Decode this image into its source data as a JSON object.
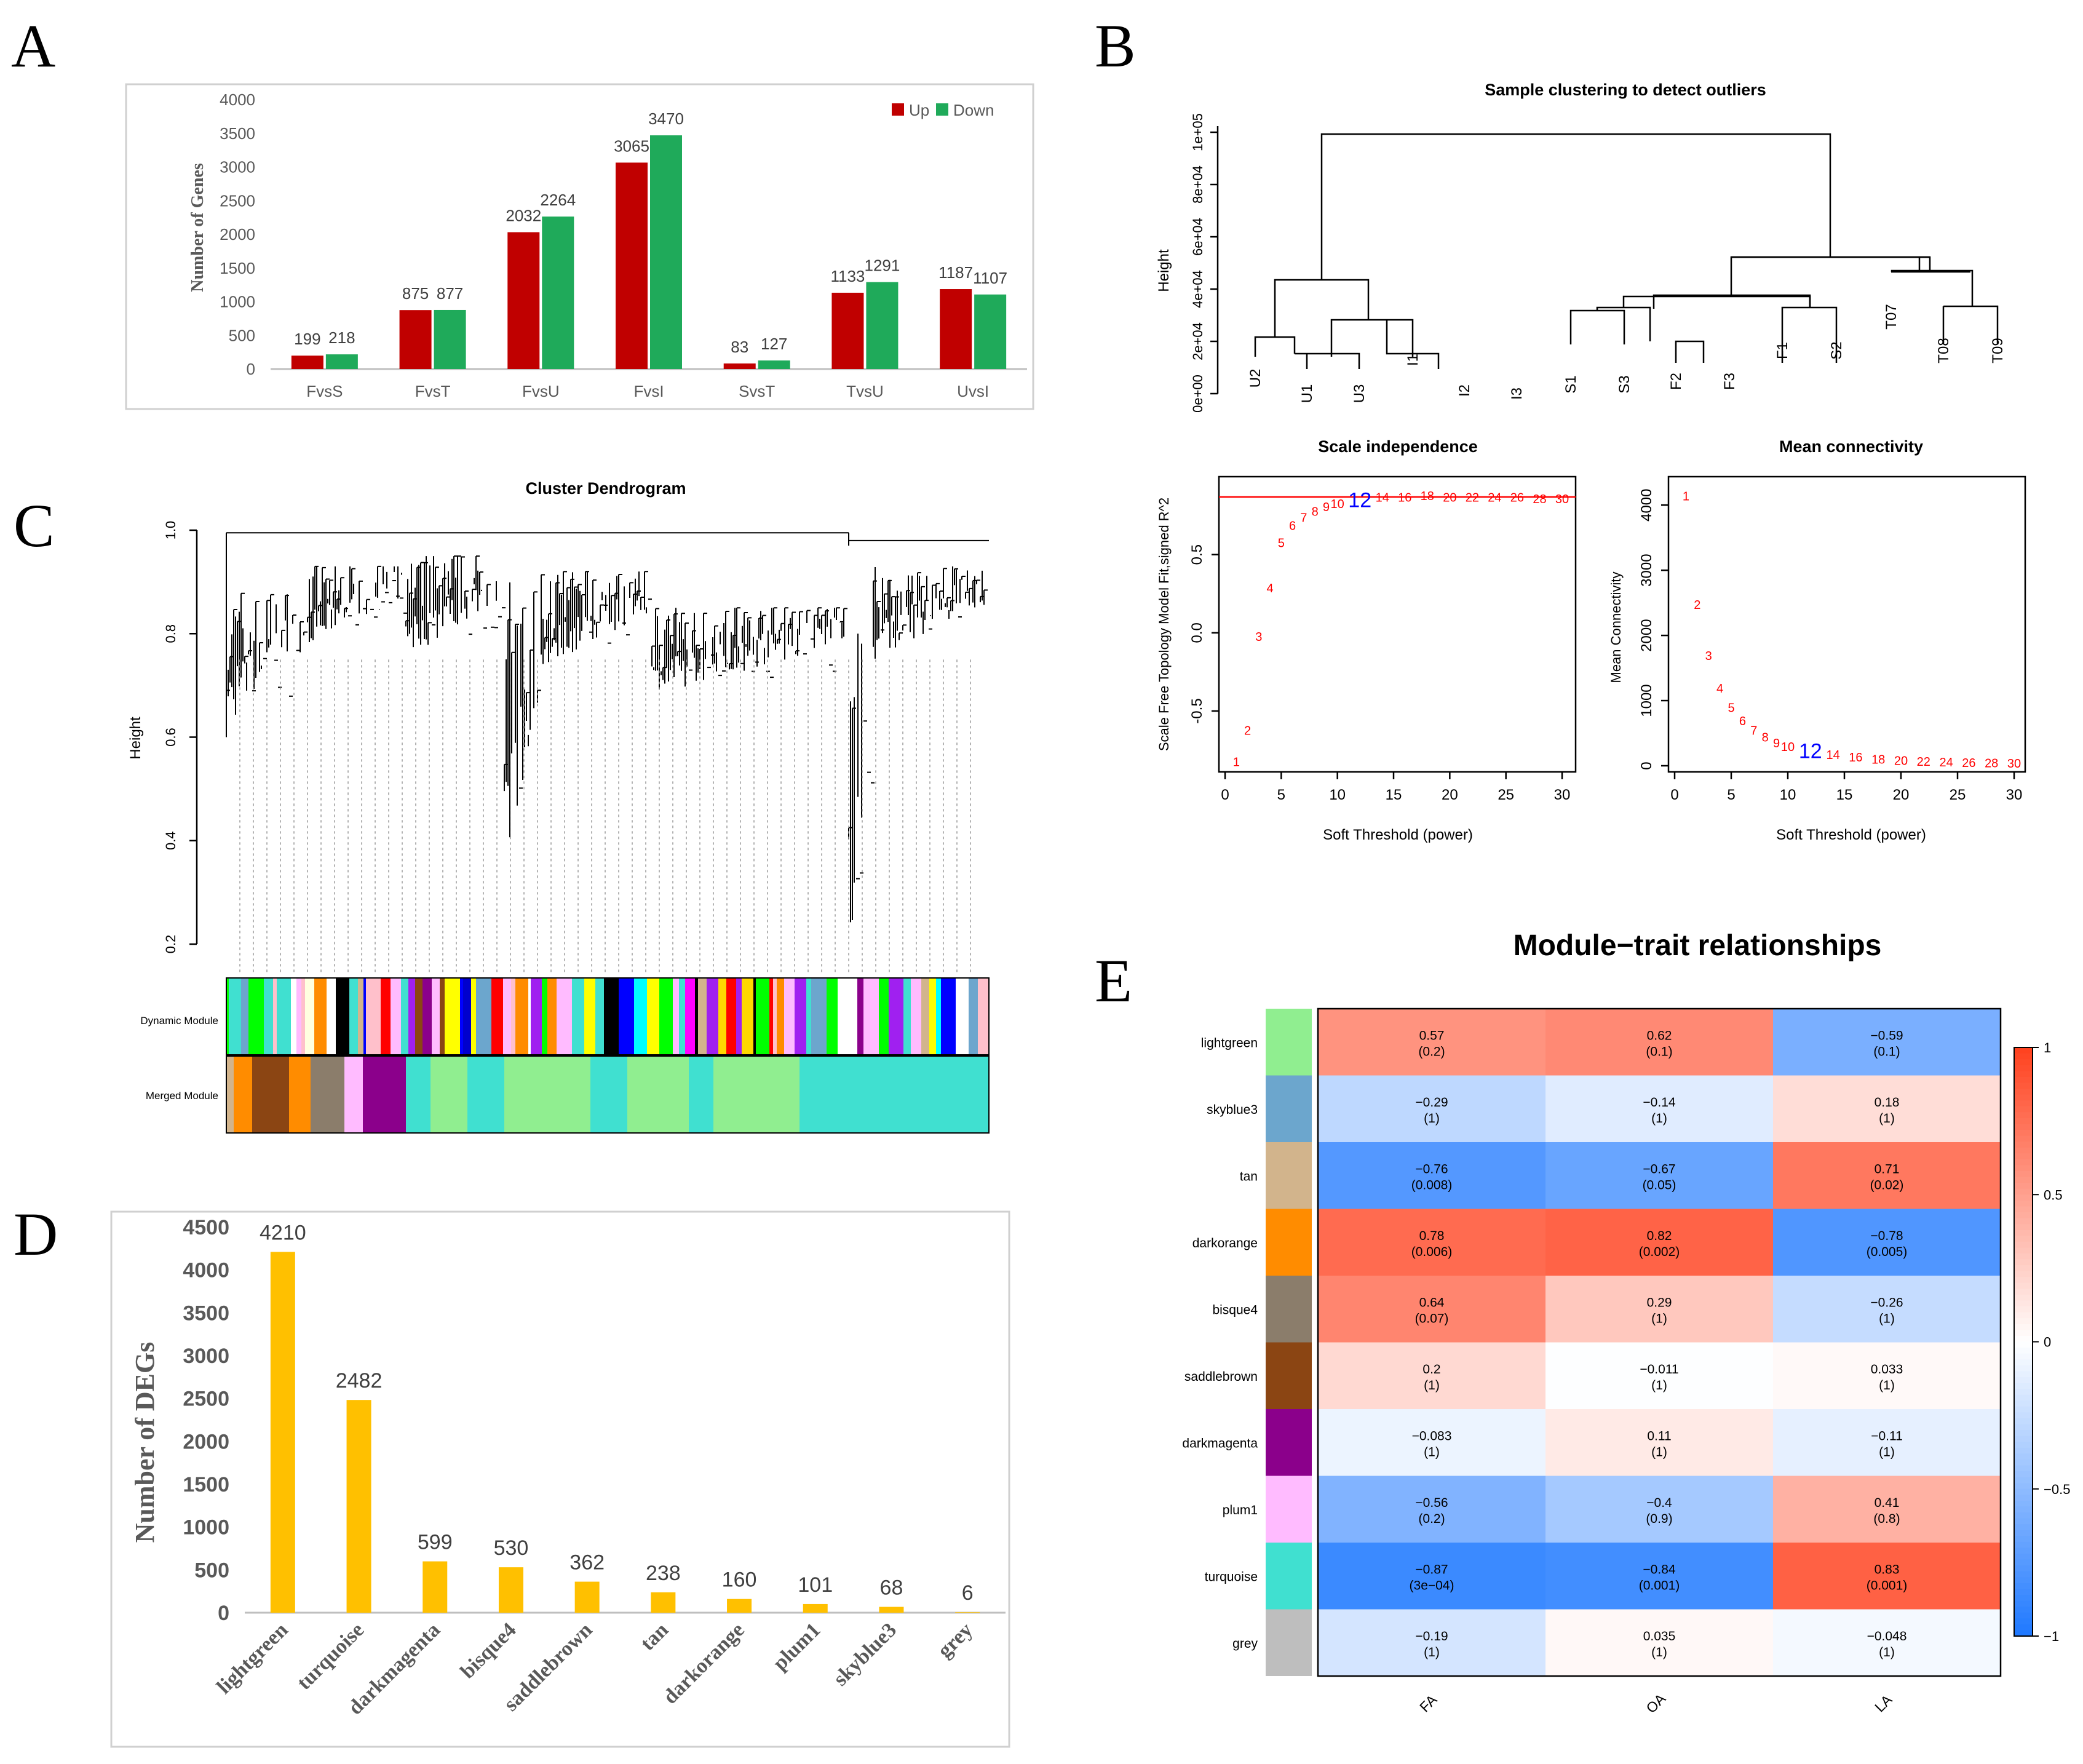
{
  "panels": {
    "A": "A",
    "B": "B",
    "C": "C",
    "D": "D",
    "E": "E"
  },
  "colors": {
    "up": "#c00000",
    "down": "#1faa5a",
    "yellow": "#ffc000",
    "red": "#ff0000",
    "blue": "#0000ff"
  },
  "chart_data": [
    {
      "id": "A",
      "type": "bar",
      "ylabel": "Number of Genes",
      "categories": [
        "FvsS",
        "FvsT",
        "FvsU",
        "FvsI",
        "SvsT",
        "TvsU",
        "UvsI"
      ],
      "ylim": [
        0,
        4000
      ],
      "yticks": [
        "0",
        "500",
        "1000",
        "1500",
        "2000",
        "2500",
        "3000",
        "3500",
        "4000"
      ],
      "legend": [
        "Up",
        "Down"
      ],
      "series": [
        {
          "name": "Up",
          "values": [
            199,
            875,
            2032,
            3065,
            83,
            1133,
            1187
          ]
        },
        {
          "name": "Down",
          "values": [
            218,
            877,
            2264,
            3470,
            127,
            1291,
            1107
          ]
        }
      ]
    },
    {
      "id": "B",
      "type": "dendrogram",
      "title": "Sample clustering to detect outliers",
      "ylabel": "Height",
      "yticks": [
        "0e+00",
        "2e+04",
        "4e+04",
        "6e+04",
        "8e+04",
        "1e+05"
      ],
      "leaves": [
        "U2",
        "U1",
        "U3",
        "I1",
        "I2",
        "I3",
        "S1",
        "S3",
        "F2",
        "F3",
        "F1",
        "S2",
        "T07",
        "T08",
        "T09"
      ]
    },
    {
      "id": "B2",
      "type": "scatter",
      "title": "Scale independence",
      "xlabel": "Soft Threshold (power)",
      "ylabel": "Scale Free Topology Model Fit,signed R^2",
      "xticks": [
        "0",
        "5",
        "10",
        "15",
        "20",
        "25",
        "30"
      ],
      "yticks": [
        "-0.5",
        "0.0",
        "0.5"
      ],
      "highlight": "12",
      "points": [
        {
          "x": 1,
          "y": -0.82,
          "label": "1"
        },
        {
          "x": 2,
          "y": -0.62,
          "label": "2"
        },
        {
          "x": 3,
          "y": -0.02,
          "label": "3"
        },
        {
          "x": 4,
          "y": 0.29,
          "label": "4"
        },
        {
          "x": 5,
          "y": 0.58,
          "label": "5"
        },
        {
          "x": 6,
          "y": 0.69,
          "label": "6"
        },
        {
          "x": 7,
          "y": 0.74,
          "label": "7"
        },
        {
          "x": 8,
          "y": 0.78,
          "label": "8"
        },
        {
          "x": 9,
          "y": 0.81,
          "label": "9"
        },
        {
          "x": 10,
          "y": 0.83,
          "label": "10"
        },
        {
          "x": 12,
          "y": 0.85,
          "label": "12"
        },
        {
          "x": 14,
          "y": 0.87,
          "label": "14"
        },
        {
          "x": 16,
          "y": 0.87,
          "label": "16"
        },
        {
          "x": 18,
          "y": 0.88,
          "label": "18"
        },
        {
          "x": 20,
          "y": 0.87,
          "label": "20"
        },
        {
          "x": 22,
          "y": 0.87,
          "label": "22"
        },
        {
          "x": 24,
          "y": 0.87,
          "label": "24"
        },
        {
          "x": 26,
          "y": 0.87,
          "label": "26"
        },
        {
          "x": 28,
          "y": 0.86,
          "label": "28"
        },
        {
          "x": 30,
          "y": 0.86,
          "label": "30"
        }
      ]
    },
    {
      "id": "B3",
      "type": "scatter",
      "title": "Mean connectivity",
      "xlabel": "Soft Threshold (power)",
      "ylabel": "Mean Connectivity",
      "xticks": [
        "0",
        "5",
        "10",
        "15",
        "20",
        "25",
        "30"
      ],
      "yticks": [
        "0",
        "1000",
        "2000",
        "3000",
        "4000"
      ],
      "highlight": "12",
      "points": [
        {
          "x": 1,
          "y": 4150,
          "label": "1"
        },
        {
          "x": 2,
          "y": 2480,
          "label": "2"
        },
        {
          "x": 3,
          "y": 1700,
          "label": "3"
        },
        {
          "x": 4,
          "y": 1200,
          "label": "4"
        },
        {
          "x": 5,
          "y": 900,
          "label": "5"
        },
        {
          "x": 6,
          "y": 700,
          "label": "6"
        },
        {
          "x": 7,
          "y": 550,
          "label": "7"
        },
        {
          "x": 8,
          "y": 450,
          "label": "8"
        },
        {
          "x": 9,
          "y": 360,
          "label": "9"
        },
        {
          "x": 10,
          "y": 300,
          "label": "10"
        },
        {
          "x": 12,
          "y": 230,
          "label": "12"
        },
        {
          "x": 14,
          "y": 180,
          "label": "14"
        },
        {
          "x": 16,
          "y": 140,
          "label": "16"
        },
        {
          "x": 18,
          "y": 110,
          "label": "18"
        },
        {
          "x": 20,
          "y": 90,
          "label": "20"
        },
        {
          "x": 22,
          "y": 75,
          "label": "22"
        },
        {
          "x": 24,
          "y": 65,
          "label": "24"
        },
        {
          "x": 26,
          "y": 55,
          "label": "26"
        },
        {
          "x": 28,
          "y": 50,
          "label": "28"
        },
        {
          "x": 30,
          "y": 45,
          "label": "30"
        }
      ]
    },
    {
      "id": "C",
      "type": "dendrogram",
      "title": "Cluster Dendrogram",
      "ylabel": "Height",
      "yticks": [
        "0.2",
        "0.4",
        "0.6",
        "0.8",
        "1.0"
      ],
      "rows": [
        "Dynamic Module",
        "Merged Module"
      ]
    },
    {
      "id": "D",
      "type": "bar",
      "ylabel": "Number of DEGs",
      "categories": [
        "lightgreen",
        "turquoise",
        "darkmagenta",
        "bisque4",
        "saddlebrown",
        "tan",
        "darkorange",
        "plum1",
        "skyblue3",
        "grey"
      ],
      "values": [
        4210,
        2482,
        599,
        530,
        362,
        238,
        160,
        101,
        68,
        6
      ],
      "ylim": [
        0,
        4500
      ],
      "yticks": [
        "0",
        "500",
        "1000",
        "1500",
        "2000",
        "2500",
        "3000",
        "3500",
        "4000",
        "4500"
      ]
    },
    {
      "id": "E",
      "type": "heatmap",
      "title": "Module−trait relationships",
      "columns": [
        "FA",
        "OA",
        "LA"
      ],
      "rows": [
        {
          "name": "lightgreen",
          "color": "#90ee90",
          "cells": [
            [
              "0.57",
              "(0.2)"
            ],
            [
              "0.62",
              "(0.1)"
            ],
            [
              "−0.59",
              "(0.1)"
            ]
          ],
          "values": [
            0.57,
            0.62,
            -0.59
          ]
        },
        {
          "name": "skyblue3",
          "color": "#6ca6cd",
          "cells": [
            [
              "−0.29",
              "(1)"
            ],
            [
              "−0.14",
              "(1)"
            ],
            [
              "0.18",
              "(1)"
            ]
          ],
          "values": [
            -0.29,
            -0.14,
            0.18
          ]
        },
        {
          "name": "tan",
          "color": "#d2b48c",
          "cells": [
            [
              "−0.76",
              "(0.008)"
            ],
            [
              "−0.67",
              "(0.05)"
            ],
            [
              "0.71",
              "(0.02)"
            ]
          ],
          "values": [
            -0.76,
            -0.67,
            0.71
          ]
        },
        {
          "name": "darkorange",
          "color": "#ff8c00",
          "cells": [
            [
              "0.78",
              "(0.006)"
            ],
            [
              "0.82",
              "(0.002)"
            ],
            [
              "−0.78",
              "(0.005)"
            ]
          ],
          "values": [
            0.78,
            0.82,
            -0.78
          ]
        },
        {
          "name": "bisque4",
          "color": "#8b7d6b",
          "cells": [
            [
              "0.64",
              "(0.07)"
            ],
            [
              "0.29",
              "(1)"
            ],
            [
              "−0.26",
              "(1)"
            ]
          ],
          "values": [
            0.64,
            0.29,
            -0.26
          ]
        },
        {
          "name": "saddlebrown",
          "label": "saddlebrown",
          "color": "#8b4513",
          "cells": [
            [
              "0.2",
              "(1)"
            ],
            [
              "−0.011",
              "(1)"
            ],
            [
              "0.033",
              "(1)"
            ]
          ],
          "values": [
            0.2,
            -0.011,
            0.033
          ]
        },
        {
          "name": "darkmagenta",
          "label": "darkmagenta",
          "color": "#8b008b",
          "cells": [
            [
              "−0.083",
              "(1)"
            ],
            [
              "0.11",
              "(1)"
            ],
            [
              "−0.11",
              "(1)"
            ]
          ],
          "values": [
            -0.083,
            0.11,
            -0.11
          ]
        },
        {
          "name": "plum1",
          "color": "#ffbbff",
          "cells": [
            [
              "−0.56",
              "(0.2)"
            ],
            [
              "−0.4",
              "(0.9)"
            ],
            [
              "0.41",
              "(0.8)"
            ]
          ],
          "values": [
            -0.56,
            -0.4,
            0.41
          ]
        },
        {
          "name": "turquoise",
          "color": "#40e0d0",
          "cells": [
            [
              "−0.87",
              "(3e−04)"
            ],
            [
              "−0.84",
              "(0.001)"
            ],
            [
              "0.83",
              "(0.001)"
            ]
          ],
          "values": [
            -0.87,
            -0.84,
            0.83
          ]
        },
        {
          "name": "grey",
          "color": "#bebebe",
          "cells": [
            [
              "−0.19",
              "(1)"
            ],
            [
              "0.035",
              "(1)"
            ],
            [
              "−0.048",
              "(1)"
            ]
          ],
          "values": [
            -0.19,
            0.035,
            -0.048
          ]
        }
      ],
      "scale": [
        "1",
        "0.5",
        "0",
        "−0.5",
        "−1"
      ]
    }
  ]
}
